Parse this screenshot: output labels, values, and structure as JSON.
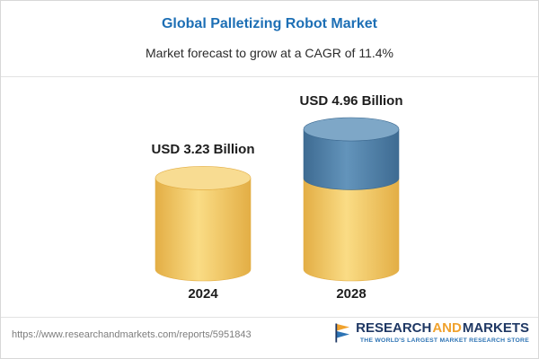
{
  "header": {
    "title": "Global Palletizing Robot Market",
    "subtitle": "Market forecast to grow at a CAGR of 11.4%"
  },
  "chart_data": {
    "type": "bar",
    "style": "3d-cylinder",
    "title": "Global Palletizing Robot Market",
    "subtitle": "Market forecast to grow at a CAGR of 11.4%",
    "unit": "USD Billion",
    "cagr": "11.4%",
    "categories": [
      "2024",
      "2028"
    ],
    "values": [
      3.23,
      4.96
    ],
    "xlabel": "",
    "ylabel": "",
    "ylim": [
      0,
      5.5
    ],
    "grid": false,
    "legend": false,
    "bars": [
      {
        "category": "2024",
        "value": 3.23,
        "label": "USD 3.23 Billion",
        "segments": [
          {
            "value": 3.23,
            "palette": 0
          }
        ]
      },
      {
        "category": "2028",
        "value": 4.96,
        "label": "USD 4.96 Billion",
        "segments": [
          {
            "value": 3.23,
            "palette": 0
          },
          {
            "value": 1.73,
            "palette": 1
          }
        ]
      }
    ],
    "palette": [
      {
        "name": "gold",
        "edge": "#E3AE45",
        "light": "#FADC85",
        "top": "#F8DC92"
      },
      {
        "name": "steel-blue",
        "edge": "#3E6B92",
        "light": "#6394BB",
        "top": "#7EA7C7"
      }
    ]
  },
  "colors": {
    "title_blue": "#1D6FB5",
    "brand_navy": "#1F3864",
    "brand_orange": "#F0A22E",
    "brand_blue": "#2E74B5"
  },
  "footer": {
    "url": "https://www.researchandmarkets.com/reports/5951843",
    "logo": {
      "part1": "RESEARCH",
      "part2": "AND",
      "part3": "MARKETS",
      "tagline": "THE WORLD'S LARGEST MARKET RESEARCH STORE"
    }
  }
}
